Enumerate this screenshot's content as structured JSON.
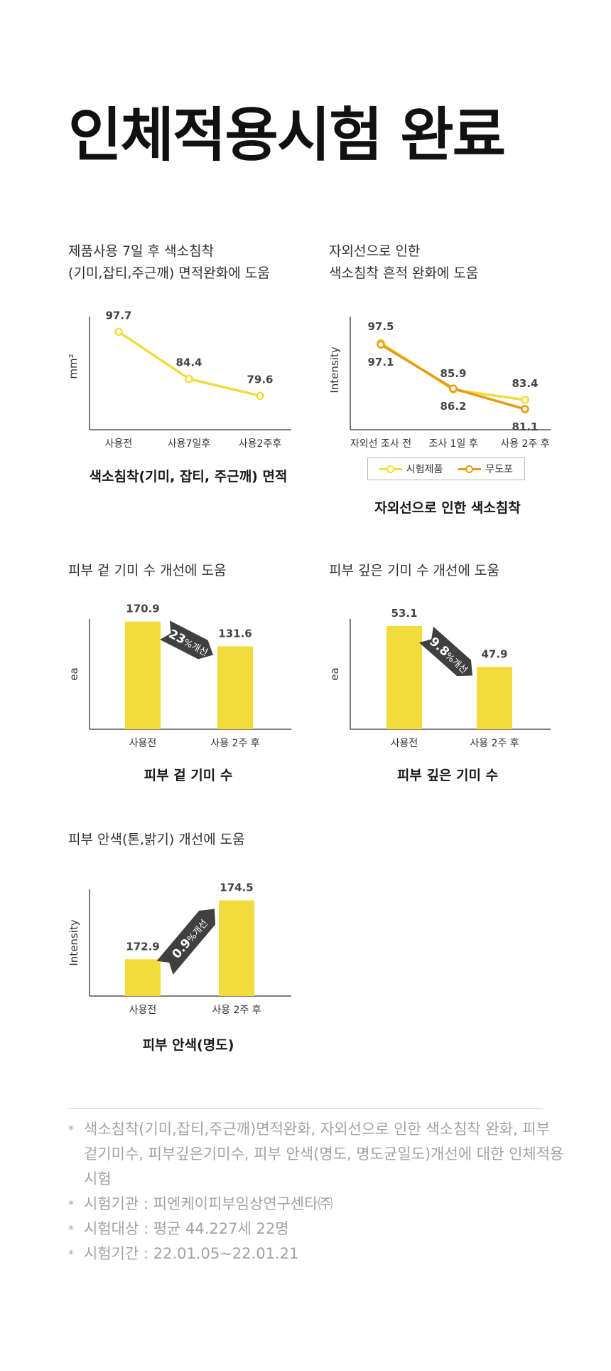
{
  "page_title": "인체적용시험 완료",
  "charts": {
    "c1": {
      "title_lines": [
        "제품사용 7일 후 색소침착",
        "(기미,잡티,주근깨) 면적완화에 도움"
      ],
      "caption": "색소침착(기미, 잡티, 주근깨) 면적",
      "ylabel": "mm²"
    },
    "c2": {
      "title_lines": [
        "자외선으로 인한",
        "색소침착 흔적 완화에 도움"
      ],
      "caption": "자외선으로 인한 색소침착",
      "ylabel": "Intensity",
      "legend": [
        "시험제품",
        "무도포"
      ]
    },
    "c3": {
      "title_lines": [
        "피부 겉 기미 수 개선에 도움"
      ],
      "caption": "피부 겉 기미 수",
      "ylabel": "ea",
      "badge_num": "23",
      "badge_rest": "%개선"
    },
    "c4": {
      "title_lines": [
        "피부 깊은 기미 수 개선에 도움"
      ],
      "caption": "피부 깊은 기미 수",
      "ylabel": "ea",
      "badge_num": "9.8",
      "badge_rest": "%개선"
    },
    "c5": {
      "title_lines": [
        "피부 안색(톤,밝기) 개선에 도움"
      ],
      "caption": "피부 안색(명도)",
      "ylabel": "Intensity",
      "badge_num": "0.9",
      "badge_rest": "%개선"
    }
  },
  "colors": {
    "yellow": "#f2dc3b",
    "line_yellow": "#f1dd3f",
    "orange": "#e89a14",
    "badge": "#404040",
    "axis": "#333333"
  },
  "notes": [
    "색소침착(기미,잡티,주근깨)면적완화, 자외선으로 인한 색소침착 완화, 피부 겉기미수, 피부깊은기미수, 피부 안색(명도, 명도균일도)개선에 대한 인체적용시험",
    "시험기관 : 피엔케이피부임상연구센타㈜",
    "시험대상 : 평균 44.227세 22명",
    "시험기간 : 22.01.05~22.01.21"
  ],
  "chart_data": [
    {
      "type": "line",
      "categories": [
        "사용전",
        "사용7일후",
        "사용2주후"
      ],
      "series": [
        {
          "values": [
            97.7,
            84.4,
            79.6
          ]
        }
      ],
      "ylabel": "mm²",
      "xlabel": "색소침착(기미, 잡티, 주근깨) 면적"
    },
    {
      "type": "line",
      "categories": [
        "자외선 조사 전",
        "조사 1일 후",
        "사용 2주 후"
      ],
      "series": [
        {
          "name": "시험제품",
          "values": [
            97.5,
            85.9,
            83.4
          ]
        },
        {
          "name": "무도포",
          "values": [
            97.1,
            86.2,
            81.1
          ]
        }
      ],
      "ylabel": "Intensity",
      "xlabel": "자외선으로 인한 색소침착",
      "legend_position": "bottom"
    },
    {
      "type": "bar",
      "categories": [
        "사용전",
        "사용 2주 후"
      ],
      "values": [
        170.9,
        131.6
      ],
      "ylabel": "ea",
      "xlabel": "피부 겉 기미 수",
      "annotation": "23%개선"
    },
    {
      "type": "bar",
      "categories": [
        "사용전",
        "사용 2주 후"
      ],
      "values": [
        53.1,
        47.9
      ],
      "ylabel": "ea",
      "xlabel": "피부 깊은 기미 수",
      "annotation": "9.8%개선"
    },
    {
      "type": "bar",
      "categories": [
        "사용전",
        "사용 2주 후"
      ],
      "values": [
        172.9,
        174.5
      ],
      "ylabel": "Intensity",
      "xlabel": "피부 안색(명도)",
      "annotation": "0.9%개선"
    }
  ]
}
